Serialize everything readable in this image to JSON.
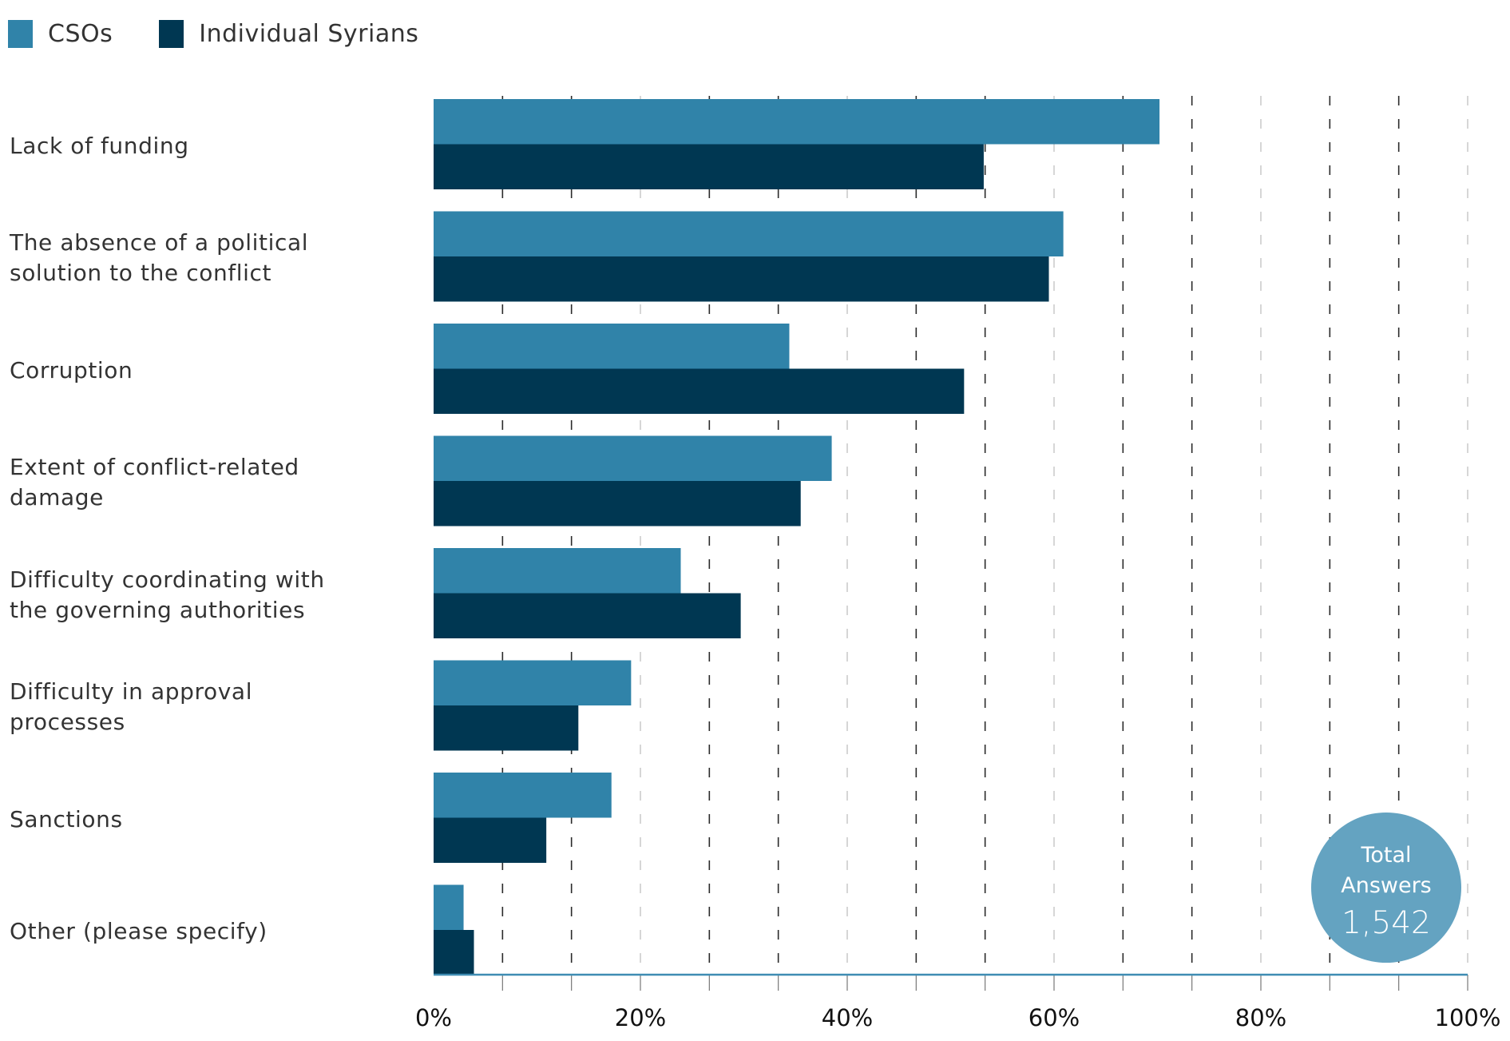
{
  "legend": [
    {
      "label": "CSOs",
      "color": "#3083A9"
    },
    {
      "label": "Individual Syrians",
      "color": "#003752"
    }
  ],
  "total_badge": {
    "line1": "Total",
    "line2": "Answers",
    "value": "1,542",
    "color": "#64A3C1"
  },
  "chart_data": {
    "type": "bar",
    "orientation": "horizontal",
    "title": "",
    "xlabel": "",
    "ylabel": "",
    "categories": [
      "Lack of funding",
      "The absence of a political solution to the conflict",
      "Corruption",
      "Extent of conflict-related damage",
      "Difficulty coordinating with the governing authorities",
      "Difficulty in approval processes",
      "Sanctions",
      "Other (please specify)"
    ],
    "category_lines": [
      [
        "Lack of funding"
      ],
      [
        "The absence of a political",
        "solution to the conflict"
      ],
      [
        "Corruption"
      ],
      [
        "Extent of conflict-related",
        "damage"
      ],
      [
        "Difficulty coordinating with",
        "the governing authorities"
      ],
      [
        "Difficulty in approval",
        "processes"
      ],
      [
        "Sanctions"
      ],
      [
        "Other (please specify)"
      ]
    ],
    "series": [
      {
        "name": "CSOs",
        "color": "#3083A9",
        "values": [
          70.2,
          60.9,
          34.4,
          38.5,
          23.9,
          19.1,
          17.2,
          2.9
        ]
      },
      {
        "name": "Individual Syrians",
        "color": "#003752",
        "values": [
          53.2,
          59.5,
          51.3,
          35.5,
          29.7,
          14.0,
          10.9,
          3.9
        ]
      }
    ],
    "xlim": [
      0,
      100
    ],
    "xticks": [
      0,
      20,
      40,
      60,
      80,
      100
    ],
    "xtick_labels": [
      "0%",
      "20%",
      "40%",
      "60%",
      "80%",
      "100%"
    ],
    "grid": true,
    "legend_position": "top-left",
    "annotation": "Total Answers 1,542"
  }
}
